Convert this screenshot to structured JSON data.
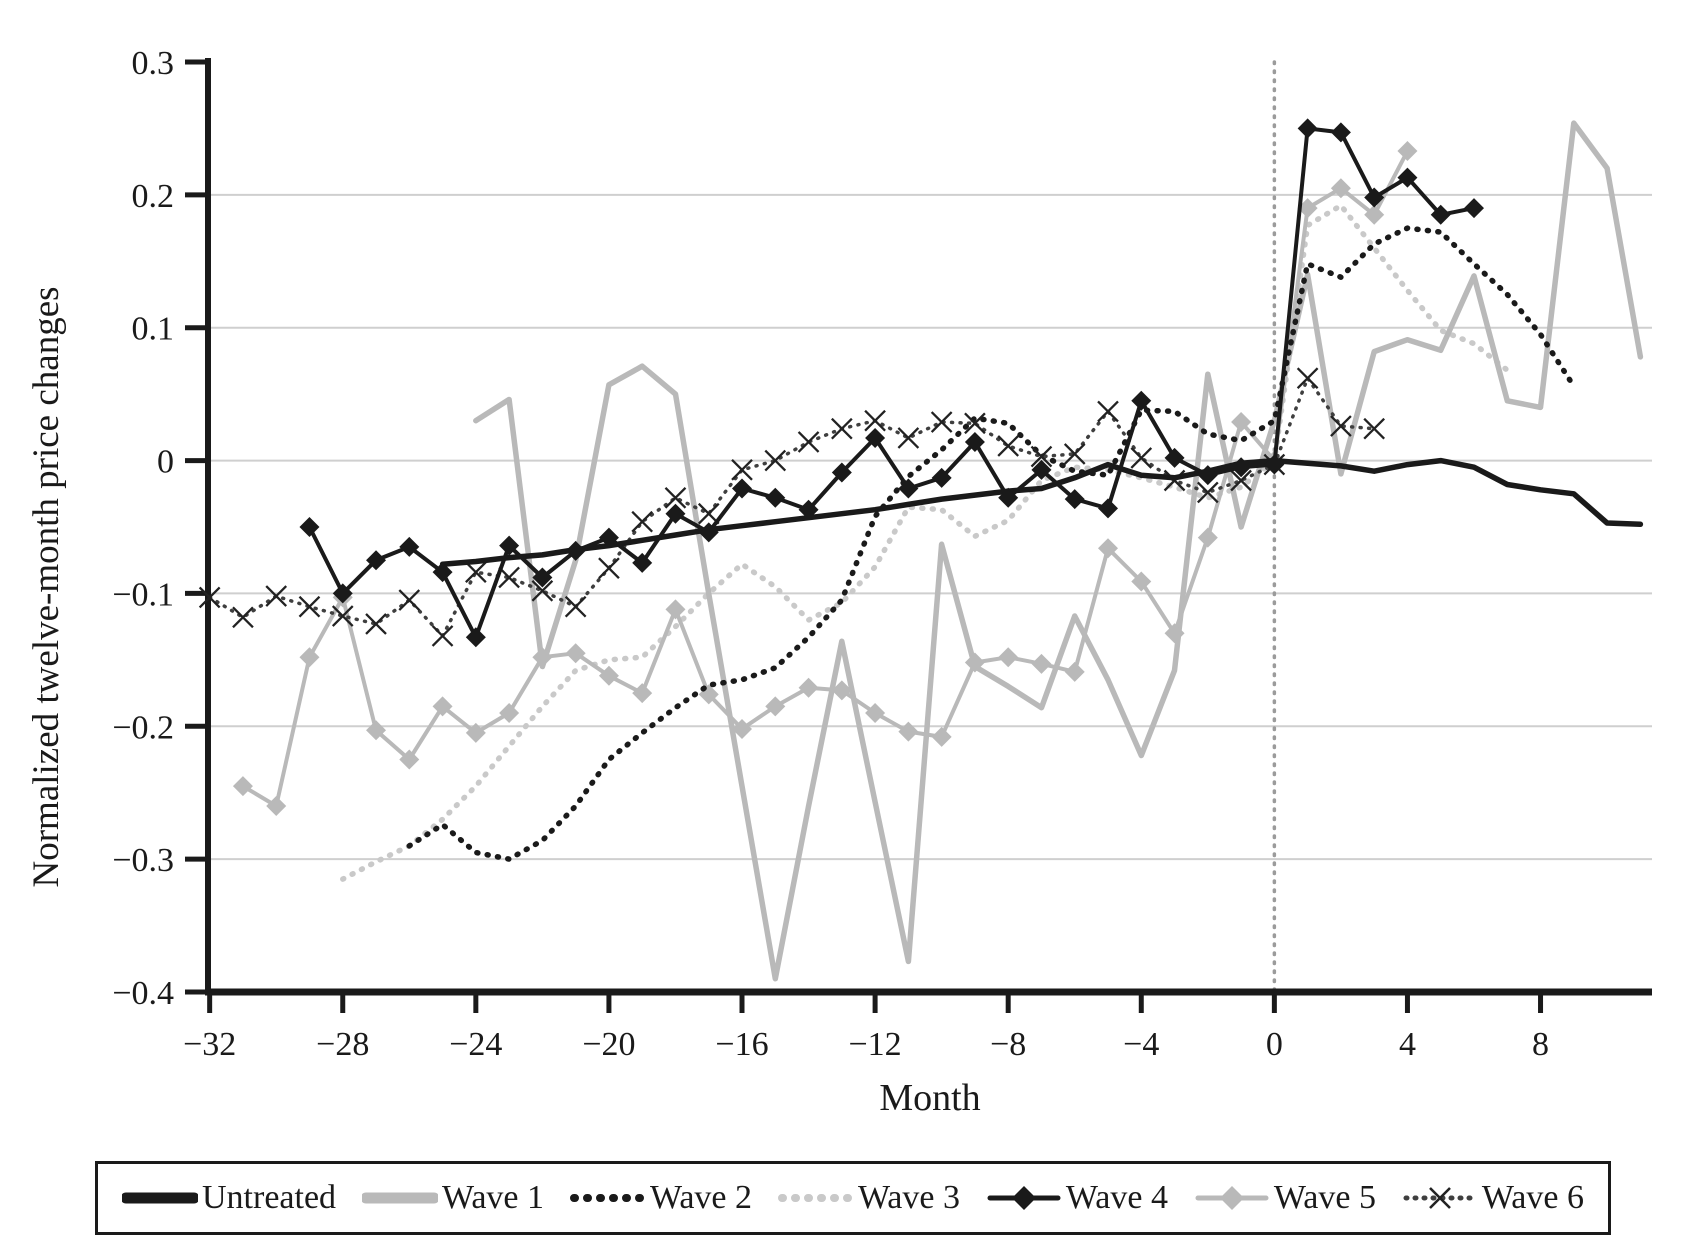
{
  "figure": {
    "x_axis_title": "Month",
    "y_axis_title": "Normalized twelve-month price changes"
  },
  "legend": {
    "items": [
      {
        "label": "Untreated"
      },
      {
        "label": "Wave 1"
      },
      {
        "label": "Wave 2"
      },
      {
        "label": "Wave 3"
      },
      {
        "label": "Wave 4"
      },
      {
        "label": "Wave 5"
      },
      {
        "label": "Wave 6"
      }
    ]
  },
  "colors": {
    "black": "#1a1a1a",
    "gray": "#b9b9b9",
    "light_gray": "#c9c9c9",
    "dark_gray": "#3f3f3f",
    "grid": "#cfcfcf",
    "event_line": "#9b9b9b",
    "x_marker": "#222222"
  },
  "chart_data": {
    "type": "line",
    "title": "",
    "xlabel": "Month",
    "ylabel": "Normalized twelve-month price changes",
    "xlim": [
      -32.05,
      11.35
    ],
    "ylim": [
      -0.4,
      0.3
    ],
    "x_ticks": [
      -32,
      -28,
      -24,
      -20,
      -16,
      -12,
      -8,
      -4,
      0,
      4,
      8
    ],
    "y_ticks": [
      0.3,
      0.2,
      0.1,
      0,
      -0.1,
      -0.2,
      -0.3,
      -0.4
    ],
    "grid_y_values": [
      0.2,
      0.1,
      0,
      -0.1,
      -0.2,
      -0.3
    ],
    "event_line_x": 0,
    "legend_position": "bottom",
    "series": [
      {
        "name": "Untreated",
        "color": "#1a1a1a",
        "width": 5.5,
        "dash": "solid",
        "marker": "none",
        "points": [
          [
            -25,
            -0.078
          ],
          [
            -24,
            -0.076
          ],
          [
            -23,
            -0.073
          ],
          [
            -22,
            -0.071
          ],
          [
            -21,
            -0.067
          ],
          [
            -20,
            -0.064
          ],
          [
            -19,
            -0.06
          ],
          [
            -18,
            -0.056
          ],
          [
            -17,
            -0.052
          ],
          [
            -16,
            -0.049
          ],
          [
            -15,
            -0.046
          ],
          [
            -14,
            -0.043
          ],
          [
            -13,
            -0.04
          ],
          [
            -12,
            -0.037
          ],
          [
            -11,
            -0.033
          ],
          [
            -10,
            -0.029
          ],
          [
            -9,
            -0.026
          ],
          [
            -8,
            -0.023
          ],
          [
            -7,
            -0.021
          ],
          [
            -6,
            -0.013
          ],
          [
            -5,
            -0.003
          ],
          [
            -4,
            -0.011
          ],
          [
            -3,
            -0.013
          ],
          [
            -2,
            -0.008
          ],
          [
            -1,
            -0.002
          ],
          [
            0,
            0.0
          ],
          [
            1,
            -0.002
          ],
          [
            2,
            -0.004
          ],
          [
            3,
            -0.008
          ],
          [
            4,
            -0.003
          ],
          [
            5,
            0.0
          ],
          [
            6,
            -0.005
          ],
          [
            7,
            -0.018
          ],
          [
            8,
            -0.022
          ],
          [
            9,
            -0.025
          ],
          [
            10,
            -0.047
          ],
          [
            11,
            -0.048
          ]
        ]
      },
      {
        "name": "Wave 1",
        "color": "#b9b9b9",
        "width": 5.5,
        "dash": "solid",
        "marker": "none",
        "points": [
          [
            -24,
            0.03
          ],
          [
            -23,
            0.046
          ],
          [
            -22,
            -0.155
          ],
          [
            -21,
            -0.075
          ],
          [
            -20,
            0.057
          ],
          [
            -19,
            0.071
          ],
          [
            -18,
            0.05
          ],
          [
            -17,
            -0.1
          ],
          [
            -16,
            -0.245
          ],
          [
            -15,
            -0.39
          ],
          [
            -14,
            -0.26
          ],
          [
            -13,
            -0.136
          ],
          [
            -12,
            -0.257
          ],
          [
            -11,
            -0.377
          ],
          [
            -10,
            -0.063
          ],
          [
            -9,
            -0.155
          ],
          [
            -8,
            -0.17
          ],
          [
            -7,
            -0.186
          ],
          [
            -6,
            -0.117
          ],
          [
            -5,
            -0.165
          ],
          [
            -4,
            -0.222
          ],
          [
            -3,
            -0.158
          ],
          [
            -2,
            0.065
          ],
          [
            -1,
            -0.05
          ],
          [
            0,
            0.03
          ],
          [
            1,
            0.14
          ],
          [
            2,
            -0.01
          ],
          [
            3,
            0.082
          ],
          [
            4,
            0.091
          ],
          [
            5,
            0.083
          ],
          [
            6,
            0.139
          ],
          [
            7,
            0.045
          ],
          [
            8,
            0.04
          ],
          [
            9,
            0.254
          ],
          [
            10,
            0.22
          ],
          [
            11,
            0.078
          ]
        ]
      },
      {
        "name": "Wave 2",
        "color": "#1a1a1a",
        "width": 5.5,
        "dash": "dot",
        "marker": "none",
        "points": [
          [
            -26,
            -0.29
          ],
          [
            -25,
            -0.274
          ],
          [
            -24,
            -0.295
          ],
          [
            -23,
            -0.3
          ],
          [
            -22,
            -0.286
          ],
          [
            -21,
            -0.26
          ],
          [
            -20,
            -0.225
          ],
          [
            -19,
            -0.205
          ],
          [
            -18,
            -0.186
          ],
          [
            -17,
            -0.169
          ],
          [
            -16,
            -0.165
          ],
          [
            -15,
            -0.156
          ],
          [
            -14,
            -0.133
          ],
          [
            -13,
            -0.105
          ],
          [
            -12,
            -0.042
          ],
          [
            -11,
            -0.012
          ],
          [
            -10,
            0.008
          ],
          [
            -9,
            0.032
          ],
          [
            -8,
            0.028
          ],
          [
            -7,
            0.004
          ],
          [
            -6,
            -0.008
          ],
          [
            -5,
            -0.011
          ],
          [
            -4,
            0.038
          ],
          [
            -3,
            0.037
          ],
          [
            -2,
            0.02
          ],
          [
            -1,
            0.015
          ],
          [
            0,
            0.03
          ],
          [
            1,
            0.148
          ],
          [
            2,
            0.138
          ],
          [
            3,
            0.163
          ],
          [
            4,
            0.175
          ],
          [
            5,
            0.172
          ],
          [
            6,
            0.148
          ],
          [
            7,
            0.125
          ],
          [
            8,
            0.095
          ],
          [
            9,
            0.056
          ]
        ]
      },
      {
        "name": "Wave 3",
        "color": "#c9c9c9",
        "width": 5.5,
        "dash": "dot",
        "marker": "none",
        "points": [
          [
            -28,
            -0.315
          ],
          [
            -27,
            -0.302
          ],
          [
            -26,
            -0.29
          ],
          [
            -25,
            -0.27
          ],
          [
            -24,
            -0.245
          ],
          [
            -23,
            -0.215
          ],
          [
            -22,
            -0.185
          ],
          [
            -21,
            -0.158
          ],
          [
            -20,
            -0.15
          ],
          [
            -19,
            -0.148
          ],
          [
            -18,
            -0.125
          ],
          [
            -17,
            -0.1
          ],
          [
            -16,
            -0.078
          ],
          [
            -15,
            -0.095
          ],
          [
            -14,
            -0.12
          ],
          [
            -13,
            -0.107
          ],
          [
            -12,
            -0.08
          ],
          [
            -11,
            -0.035
          ],
          [
            -10,
            -0.037
          ],
          [
            -9,
            -0.057
          ],
          [
            -8,
            -0.045
          ],
          [
            -7,
            -0.015
          ],
          [
            -6,
            -0.005
          ],
          [
            -5,
            -0.007
          ],
          [
            -4,
            -0.013
          ],
          [
            -3,
            -0.02
          ],
          [
            -2,
            -0.028
          ],
          [
            -1,
            -0.02
          ],
          [
            0,
            0.0
          ],
          [
            1,
            0.177
          ],
          [
            2,
            0.192
          ],
          [
            3,
            0.16
          ],
          [
            4,
            0.128
          ],
          [
            5,
            0.098
          ],
          [
            6,
            0.088
          ],
          [
            7,
            0.068
          ]
        ]
      },
      {
        "name": "Wave 4",
        "color": "#1a1a1a",
        "width": 4,
        "dash": "solid",
        "marker": "diamond",
        "points": [
          [
            -29,
            -0.05
          ],
          [
            -28,
            -0.1
          ],
          [
            -27,
            -0.075
          ],
          [
            -26,
            -0.065
          ],
          [
            -25,
            -0.084
          ],
          [
            -24,
            -0.133
          ],
          [
            -23,
            -0.064
          ],
          [
            -22,
            -0.088
          ],
          [
            -21,
            -0.068
          ],
          [
            -20,
            -0.058
          ],
          [
            -19,
            -0.077
          ],
          [
            -18,
            -0.04
          ],
          [
            -17,
            -0.054
          ],
          [
            -16,
            -0.021
          ],
          [
            -15,
            -0.028
          ],
          [
            -14,
            -0.037
          ],
          [
            -13,
            -0.009
          ],
          [
            -12,
            0.017
          ],
          [
            -11,
            -0.021
          ],
          [
            -10,
            -0.013
          ],
          [
            -9,
            0.014
          ],
          [
            -8,
            -0.028
          ],
          [
            -7,
            -0.007
          ],
          [
            -6,
            -0.029
          ],
          [
            -5,
            -0.036
          ],
          [
            -4,
            0.045
          ],
          [
            -3,
            0.002
          ],
          [
            -2,
            -0.011
          ],
          [
            -1,
            -0.005
          ],
          [
            0,
            -0.003
          ],
          [
            1,
            0.25
          ],
          [
            2,
            0.247
          ],
          [
            3,
            0.198
          ],
          [
            4,
            0.213
          ],
          [
            5,
            0.185
          ],
          [
            6,
            0.19
          ]
        ]
      },
      {
        "name": "Wave 5",
        "color": "#b9b9b9",
        "width": 4,
        "dash": "solid",
        "marker": "diamond",
        "points": [
          [
            -31,
            -0.245
          ],
          [
            -30,
            -0.26
          ],
          [
            -29,
            -0.148
          ],
          [
            -28,
            -0.103
          ],
          [
            -27,
            -0.203
          ],
          [
            -26,
            -0.225
          ],
          [
            -25,
            -0.185
          ],
          [
            -24,
            -0.205
          ],
          [
            -23,
            -0.19
          ],
          [
            -22,
            -0.148
          ],
          [
            -21,
            -0.145
          ],
          [
            -20,
            -0.162
          ],
          [
            -19,
            -0.175
          ],
          [
            -18,
            -0.112
          ],
          [
            -17,
            -0.176
          ],
          [
            -16,
            -0.202
          ],
          [
            -15,
            -0.185
          ],
          [
            -14,
            -0.171
          ],
          [
            -13,
            -0.173
          ],
          [
            -12,
            -0.19
          ],
          [
            -11,
            -0.204
          ],
          [
            -10,
            -0.208
          ],
          [
            -9,
            -0.152
          ],
          [
            -8,
            -0.148
          ],
          [
            -7,
            -0.153
          ],
          [
            -6,
            -0.159
          ],
          [
            -5,
            -0.066
          ],
          [
            -4,
            -0.091
          ],
          [
            -3,
            -0.13
          ],
          [
            -2,
            -0.058
          ],
          [
            -1,
            0.029
          ],
          [
            0,
            0.0
          ],
          [
            1,
            0.19
          ],
          [
            2,
            0.205
          ],
          [
            3,
            0.185
          ],
          [
            4,
            0.233
          ]
        ]
      },
      {
        "name": "Wave 6",
        "color": "#3f3f3f",
        "width": 3.5,
        "dash": "dot",
        "marker": "x",
        "points": [
          [
            -32,
            -0.103
          ],
          [
            -31,
            -0.118
          ],
          [
            -30,
            -0.102
          ],
          [
            -29,
            -0.11
          ],
          [
            -28,
            -0.117
          ],
          [
            -27,
            -0.123
          ],
          [
            -26,
            -0.105
          ],
          [
            -25,
            -0.132
          ],
          [
            -24,
            -0.084
          ],
          [
            -23,
            -0.088
          ],
          [
            -22,
            -0.098
          ],
          [
            -21,
            -0.11
          ],
          [
            -20,
            -0.081
          ],
          [
            -19,
            -0.046
          ],
          [
            -18,
            -0.028
          ],
          [
            -17,
            -0.04
          ],
          [
            -16,
            -0.007
          ],
          [
            -15,
            0.0
          ],
          [
            -14,
            0.014
          ],
          [
            -13,
            0.024
          ],
          [
            -12,
            0.03
          ],
          [
            -11,
            0.017
          ],
          [
            -10,
            0.029
          ],
          [
            -9,
            0.028
          ],
          [
            -8,
            0.011
          ],
          [
            -7,
            0.003
          ],
          [
            -6,
            0.005
          ],
          [
            -5,
            0.037
          ],
          [
            -4,
            0.002
          ],
          [
            -3,
            -0.015
          ],
          [
            -2,
            -0.024
          ],
          [
            -1,
            -0.015
          ],
          [
            0,
            -0.003
          ],
          [
            1,
            0.062
          ],
          [
            2,
            0.026
          ],
          [
            3,
            0.024
          ]
        ]
      }
    ]
  }
}
